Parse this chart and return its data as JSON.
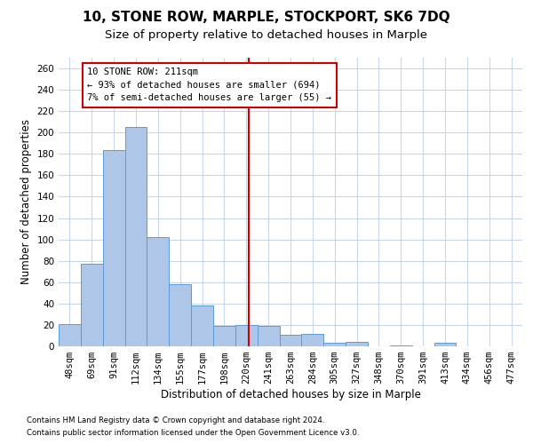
{
  "title": "10, STONE ROW, MARPLE, STOCKPORT, SK6 7DQ",
  "subtitle": "Size of property relative to detached houses in Marple",
  "xlabel": "Distribution of detached houses by size in Marple",
  "ylabel": "Number of detached properties",
  "categories": [
    "48sqm",
    "69sqm",
    "91sqm",
    "112sqm",
    "134sqm",
    "155sqm",
    "177sqm",
    "198sqm",
    "220sqm",
    "241sqm",
    "263sqm",
    "284sqm",
    "305sqm",
    "327sqm",
    "348sqm",
    "370sqm",
    "391sqm",
    "413sqm",
    "434sqm",
    "456sqm",
    "477sqm"
  ],
  "values": [
    21,
    77,
    184,
    205,
    102,
    58,
    38,
    19,
    20,
    19,
    11,
    12,
    3,
    4,
    0,
    1,
    0,
    3,
    0,
    0,
    0
  ],
  "bar_color": "#AEC6E8",
  "bar_edge_color": "#5B9BD5",
  "vline_color": "#CC0000",
  "annotation_text": "10 STONE ROW: 211sqm\n← 93% of detached houses are smaller (694)\n7% of semi-detached houses are larger (55) →",
  "annotation_box_color": "#CC0000",
  "ylim": [
    0,
    270
  ],
  "yticks": [
    0,
    20,
    40,
    60,
    80,
    100,
    120,
    140,
    160,
    180,
    200,
    220,
    240,
    260
  ],
  "footer_line1": "Contains HM Land Registry data © Crown copyright and database right 2024.",
  "footer_line2": "Contains public sector information licensed under the Open Government Licence v3.0.",
  "background_color": "#FFFFFF",
  "grid_color": "#C8D8E8",
  "title_fontsize": 11,
  "subtitle_fontsize": 9.5,
  "axis_label_fontsize": 8.5,
  "tick_fontsize": 7.5,
  "annotation_fontsize": 7.5,
  "footer_fontsize": 6.2
}
